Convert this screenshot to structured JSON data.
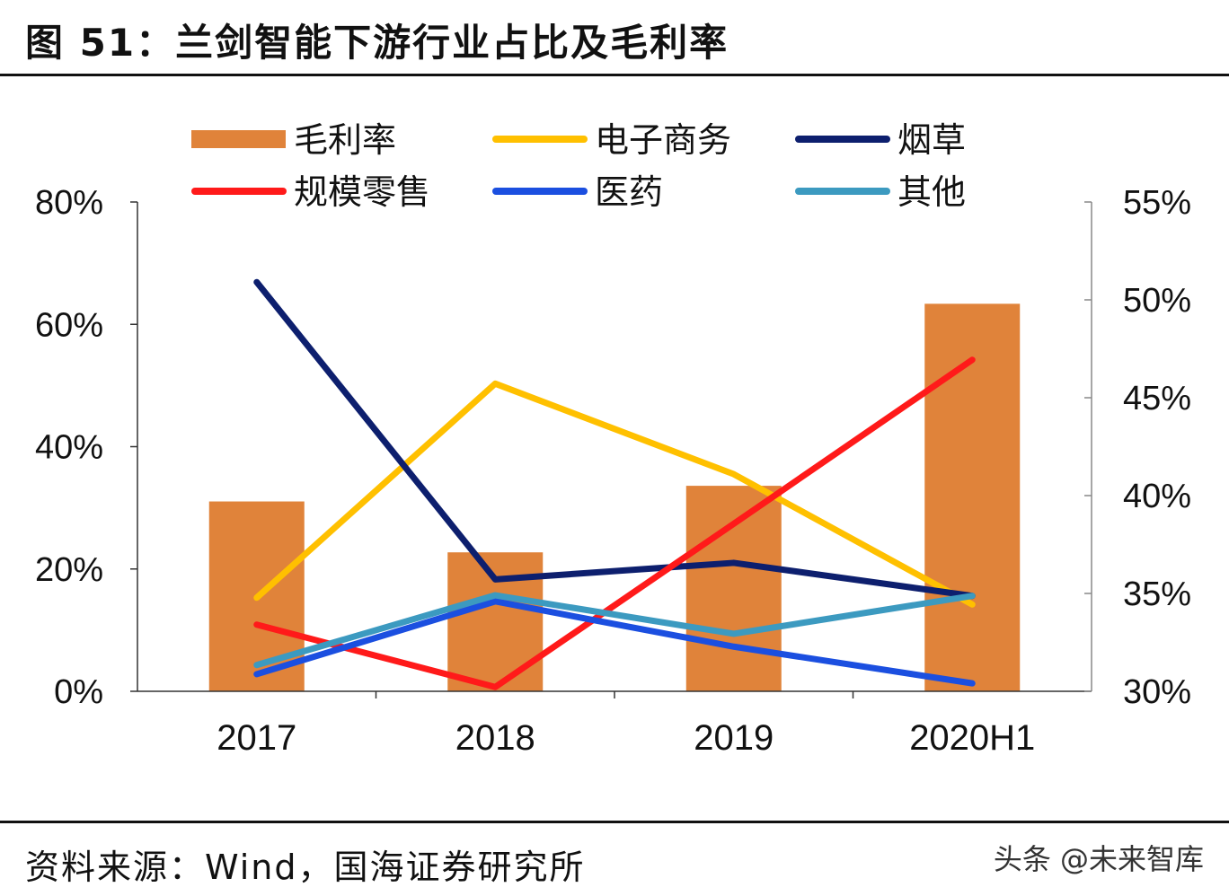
{
  "title": "图 51：兰剑智能下游行业占比及毛利率",
  "footer": "资料来源：Wind，国海证券研究所",
  "watermark": "头条 @未来智库",
  "chart_data": {
    "type": "bar+line",
    "categories": [
      "2017",
      "2018",
      "2019",
      "2020H1"
    ],
    "left_axis": {
      "ylim": [
        0,
        80
      ],
      "ticks": [
        "0%",
        "20%",
        "40%",
        "60%",
        "80%"
      ]
    },
    "right_axis": {
      "ylim": [
        30,
        55
      ],
      "ticks": [
        "30%",
        "35%",
        "40%",
        "45%",
        "50%",
        "55%"
      ]
    },
    "grid": false,
    "legend_position": "top",
    "bars": {
      "name": "毛利率",
      "axis": "right",
      "color": "#E0833A",
      "values": [
        39.7,
        37.1,
        40.5,
        49.8
      ]
    },
    "series": [
      {
        "name": "电子商务",
        "axis": "left",
        "color": "#FFC000",
        "values": [
          15.3,
          50.3,
          35.5,
          14.2
        ]
      },
      {
        "name": "烟草",
        "axis": "left",
        "color": "#0D1F6E",
        "values": [
          66.9,
          18.3,
          21.0,
          15.6
        ]
      },
      {
        "name": "规模零售",
        "axis": "left",
        "color": "#FF1A1A",
        "values": [
          10.9,
          0.7,
          27.4,
          54.2
        ]
      },
      {
        "name": "医药",
        "axis": "left",
        "color": "#1B4FE0",
        "values": [
          2.8,
          14.7,
          7.3,
          1.3
        ]
      },
      {
        "name": "其他",
        "axis": "left",
        "color": "#3C9AC0",
        "values": [
          4.3,
          15.7,
          9.4,
          15.6
        ]
      }
    ]
  }
}
